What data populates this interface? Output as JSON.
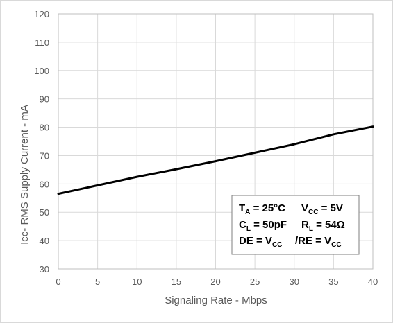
{
  "chart_data": {
    "type": "line",
    "xlabel": "Signaling Rate - Mbps",
    "ylabel": "Icc- RMS Supply Current - mA",
    "xlim": [
      0,
      40
    ],
    "ylim": [
      30,
      120
    ],
    "x_ticks": [
      "0",
      "5",
      "10",
      "15",
      "20",
      "25",
      "30",
      "35",
      "40"
    ],
    "y_ticks": [
      "30",
      "40",
      "50",
      "60",
      "70",
      "80",
      "90",
      "100",
      "110",
      "120"
    ],
    "grid": true,
    "series": [
      {
        "x": [
          0,
          5,
          10,
          15,
          20,
          25,
          30,
          35,
          40
        ],
        "y": [
          56.5,
          59.5,
          62.5,
          65.2,
          68.0,
          71.0,
          74.0,
          77.5,
          80.2
        ],
        "color": "#000000"
      }
    ],
    "annotation": {
      "line1": {
        "ta_main": "T",
        "ta_sub": "A",
        "ta_val": " = 25°C",
        "vcc_main": "V",
        "vcc_sub": "CC",
        "vcc_val": " = 5V"
      },
      "line2": {
        "cl_main": "C",
        "cl_sub": "L",
        "cl_val": " = 50pF",
        "rl_main": "R",
        "rl_sub": "L",
        "rl_val": " = 54Ω"
      },
      "line3": {
        "de": "DE = V",
        "de_sub": "CC",
        "re": "/RE = V",
        "re_sub": "CC"
      }
    }
  }
}
